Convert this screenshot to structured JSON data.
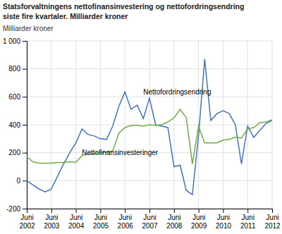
{
  "chart_data": {
    "type": "line",
    "title": "Statsforvaltningens nettofinansinvestering og nettofordringsendring",
    "subtitle": "siste fire kvartaler. Milliarder kroner",
    "y_label": "Milliarder kroner",
    "categories": [
      "Juni\n2002",
      null,
      null,
      null,
      "Juni\n2003",
      null,
      null,
      null,
      "Juni\n2004",
      null,
      null,
      null,
      "Juni\n2005",
      null,
      null,
      null,
      "Juni\n2006",
      null,
      null,
      null,
      "Juni\n2007",
      null,
      null,
      null,
      "Juni\n2008",
      null,
      null,
      null,
      "Juni\n2009",
      null,
      null,
      null,
      "Juni\n2010",
      null,
      null,
      null,
      "Juni\n2011",
      null,
      null,
      null,
      "Juni\n2012"
    ],
    "series": [
      {
        "color": "#4472C4",
        "values": [
          0,
          -30,
          -60,
          -80,
          -60,
          30,
          120,
          200,
          270,
          370,
          330,
          320,
          300,
          295,
          390,
          530,
          635,
          510,
          540,
          445,
          590,
          400,
          390,
          380,
          100,
          110,
          -70,
          -100,
          320,
          870,
          430,
          480,
          500,
          480,
          400,
          120,
          390,
          310,
          360,
          410,
          430
        ]
      },
      {
        "color": "#70AD47",
        "values": [
          170,
          135,
          125,
          125,
          125,
          130,
          130,
          135,
          130,
          180,
          190,
          195,
          200,
          205,
          210,
          340,
          380,
          395,
          395,
          390,
          400,
          395,
          400,
          420,
          450,
          510,
          450,
          120,
          390,
          270,
          270,
          270,
          290,
          295,
          310,
          305,
          370,
          380,
          415,
          420,
          435
        ]
      }
    ],
    "annotations": [
      {
        "text": "Nettofinansinvesteringer",
        "x": 9,
        "y": 185
      },
      {
        "text": "Nettofordringsendring",
        "x": 19,
        "y": 615
      }
    ],
    "ylim": [
      -200,
      1000
    ],
    "yticks": [
      -200,
      0,
      200,
      400,
      600,
      800,
      {
        "value": 1000,
        "label": "1 000"
      }
    ],
    "grid": true
  }
}
